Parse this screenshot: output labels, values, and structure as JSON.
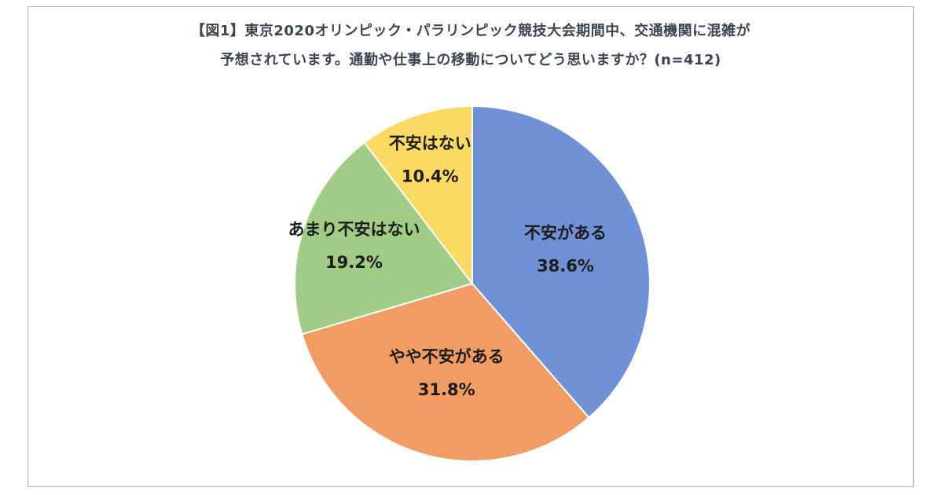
{
  "figure": {
    "title_line1": "【図1】東京2020オリンピック・パラリンピック競技大会期間中、交通機関に混雑が",
    "title_line2": "予想されています。通勤や仕事上の移動についてどう思いますか？(n=412)"
  },
  "chart_data": {
    "type": "pie",
    "title": "【図1】東京2020オリンピック・パラリンピック競技大会期間中、交通機関に混雑が予想されています。通勤や仕事上の移動についてどう思いますか？(n=412)",
    "sample_size_label": "n=412",
    "categories": [
      "不安がある",
      "やや不安がある",
      "あまり不安はない",
      "不安はない"
    ],
    "values": [
      38.6,
      31.8,
      19.2,
      10.4
    ],
    "percent_labels": [
      "38.6%",
      "31.8%",
      "19.2%",
      "10.4%"
    ],
    "colors": [
      "#7191d6",
      "#f09c63",
      "#a0cc85",
      "#fada62"
    ],
    "unit": "%",
    "legend": "none",
    "layout": {
      "start_angle_deg": 0,
      "direction": "clockwise",
      "label_radius": [
        0.56,
        0.52,
        0.7,
        0.74
      ]
    }
  }
}
